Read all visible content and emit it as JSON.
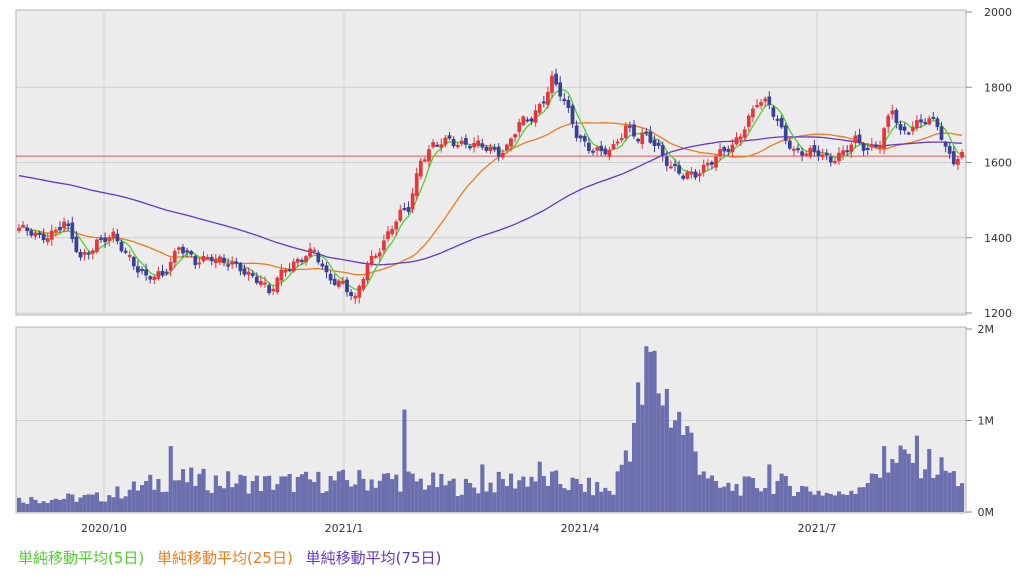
{
  "chart_data": {
    "type": "candlestick",
    "price_axis": {
      "ticks": [
        "2000",
        "1800",
        "1600",
        "1400",
        "1200"
      ],
      "ylim": [
        1200,
        2000
      ]
    },
    "volume_axis": {
      "ticks": [
        "2M",
        "1M",
        "0M"
      ],
      "ylim": [
        0,
        2000000
      ]
    },
    "x_ticks": [
      "2020/10",
      "2021/1",
      "2021/4",
      "2021/7"
    ],
    "horizontal_line": 1617,
    "colors": {
      "up": "#e8353a",
      "down": "#3a3f9a",
      "ma5": "#4cd12c",
      "ma25": "#ef7b1c",
      "ma75": "#6236c9",
      "volume": "#6c6fae",
      "hline": "#e85656"
    },
    "price_anchors": [
      {
        "x": 0,
        "c": 1425
      },
      {
        "x": 5,
        "c": 1400
      },
      {
        "x": 9,
        "c": 1420
      },
      {
        "x": 11,
        "c": 1440
      },
      {
        "x": 15,
        "c": 1345
      },
      {
        "x": 19,
        "c": 1390
      },
      {
        "x": 23,
        "c": 1400
      },
      {
        "x": 27,
        "c": 1350
      },
      {
        "x": 31,
        "c": 1290
      },
      {
        "x": 35,
        "c": 1300
      },
      {
        "x": 39,
        "c": 1380
      },
      {
        "x": 43,
        "c": 1330
      },
      {
        "x": 47,
        "c": 1355
      },
      {
        "x": 51,
        "c": 1330
      },
      {
        "x": 55,
        "c": 1310
      },
      {
        "x": 59,
        "c": 1290
      },
      {
        "x": 61,
        "c": 1250
      },
      {
        "x": 65,
        "c": 1320
      },
      {
        "x": 69,
        "c": 1350
      },
      {
        "x": 72,
        "c": 1360
      },
      {
        "x": 75,
        "c": 1300
      },
      {
        "x": 79,
        "c": 1280
      },
      {
        "x": 82,
        "c": 1230
      },
      {
        "x": 85,
        "c": 1330
      },
      {
        "x": 89,
        "c": 1390
      },
      {
        "x": 93,
        "c": 1460
      },
      {
        "x": 95,
        "c": 1480
      },
      {
        "x": 98,
        "c": 1610
      },
      {
        "x": 101,
        "c": 1640
      },
      {
        "x": 105,
        "c": 1660
      },
      {
        "x": 109,
        "c": 1650
      },
      {
        "x": 113,
        "c": 1640
      },
      {
        "x": 117,
        "c": 1630
      },
      {
        "x": 119,
        "c": 1640
      },
      {
        "x": 122,
        "c": 1700
      },
      {
        "x": 125,
        "c": 1720
      },
      {
        "x": 128,
        "c": 1770
      },
      {
        "x": 130,
        "c": 1820
      },
      {
        "x": 133,
        "c": 1760
      },
      {
        "x": 136,
        "c": 1680
      },
      {
        "x": 139,
        "c": 1640
      },
      {
        "x": 142,
        "c": 1620
      },
      {
        "x": 145,
        "c": 1640
      },
      {
        "x": 148,
        "c": 1700
      },
      {
        "x": 151,
        "c": 1660
      },
      {
        "x": 153,
        "c": 1670
      },
      {
        "x": 156,
        "c": 1640
      },
      {
        "x": 159,
        "c": 1590
      },
      {
        "x": 162,
        "c": 1560
      },
      {
        "x": 165,
        "c": 1570
      },
      {
        "x": 168,
        "c": 1600
      },
      {
        "x": 171,
        "c": 1620
      },
      {
        "x": 174,
        "c": 1640
      },
      {
        "x": 177,
        "c": 1700
      },
      {
        "x": 180,
        "c": 1760
      },
      {
        "x": 183,
        "c": 1750
      },
      {
        "x": 186,
        "c": 1690
      },
      {
        "x": 189,
        "c": 1630
      },
      {
        "x": 192,
        "c": 1620
      },
      {
        "x": 195,
        "c": 1630
      },
      {
        "x": 198,
        "c": 1610
      },
      {
        "x": 201,
        "c": 1620
      },
      {
        "x": 204,
        "c": 1660
      },
      {
        "x": 207,
        "c": 1640
      },
      {
        "x": 210,
        "c": 1650
      },
      {
        "x": 213,
        "c": 1740
      },
      {
        "x": 215,
        "c": 1680
      },
      {
        "x": 218,
        "c": 1700
      },
      {
        "x": 221,
        "c": 1710
      },
      {
        "x": 224,
        "c": 1700
      },
      {
        "x": 226,
        "c": 1640
      },
      {
        "x": 228,
        "c": 1610
      },
      {
        "x": 230,
        "c": 1615
      }
    ],
    "volume_anchors": [
      {
        "x": 0,
        "v": 150000
      },
      {
        "x": 20,
        "v": 180000
      },
      {
        "x": 37,
        "v": 400000
      },
      {
        "x": 60,
        "v": 350000
      },
      {
        "x": 92,
        "v": 400000
      },
      {
        "x": 110,
        "v": 300000
      },
      {
        "x": 125,
        "v": 420000
      },
      {
        "x": 145,
        "v": 250000
      },
      {
        "x": 154,
        "v": 1750000
      },
      {
        "x": 170,
        "v": 280000
      },
      {
        "x": 185,
        "v": 350000
      },
      {
        "x": 200,
        "v": 200000
      },
      {
        "x": 218,
        "v": 700000
      },
      {
        "x": 229,
        "v": 400000
      }
    ],
    "volume_spikes": [
      {
        "x": 37,
        "v": 720000
      },
      {
        "x": 94,
        "v": 1120000
      },
      {
        "x": 113,
        "v": 520000
      },
      {
        "x": 127,
        "v": 550000
      },
      {
        "x": 154,
        "v": 1750000
      },
      {
        "x": 183,
        "v": 520000
      },
      {
        "x": 208,
        "v": 420000
      },
      {
        "x": 211,
        "v": 720000
      },
      {
        "x": 226,
        "v": 450000
      }
    ]
  },
  "legend": {
    "ma5_label": "単純移動平均(5日)",
    "ma25_label": "単純移動平均(25日)",
    "ma75_label": "単純移動平均(75日)"
  }
}
